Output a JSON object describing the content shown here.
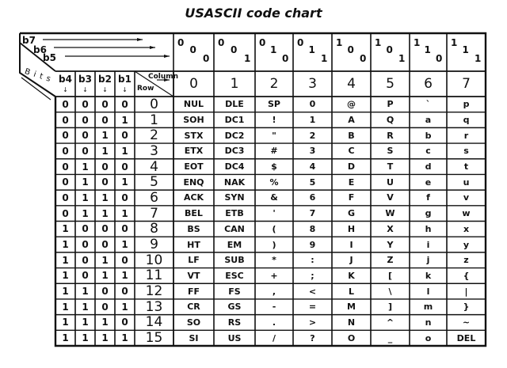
{
  "title": "USASCII code chart",
  "header": {
    "bits_label": "Bits",
    "b7": "b7",
    "b6": "b6",
    "b5": "b5",
    "bit_columns": [
      "b4",
      "b3",
      "b2",
      "b1"
    ],
    "column_label": "Column",
    "row_label": "Row"
  },
  "columns": [
    {
      "bits": [
        "0",
        "0",
        "0"
      ],
      "number": "0"
    },
    {
      "bits": [
        "0",
        "0",
        "1"
      ],
      "number": "1"
    },
    {
      "bits": [
        "0",
        "1",
        "0"
      ],
      "number": "2"
    },
    {
      "bits": [
        "0",
        "1",
        "1"
      ],
      "number": "3"
    },
    {
      "bits": [
        "1",
        "0",
        "0"
      ],
      "number": "4"
    },
    {
      "bits": [
        "1",
        "0",
        "1"
      ],
      "number": "5"
    },
    {
      "bits": [
        "1",
        "1",
        "0"
      ],
      "number": "6"
    },
    {
      "bits": [
        "1",
        "1",
        "1"
      ],
      "number": "7"
    }
  ],
  "rows": [
    {
      "bits": [
        "0",
        "0",
        "0",
        "0"
      ],
      "number": "0",
      "chars": [
        "NUL",
        "DLE",
        "SP",
        "0",
        "@",
        "P",
        "`",
        "p"
      ]
    },
    {
      "bits": [
        "0",
        "0",
        "0",
        "1"
      ],
      "number": "1",
      "chars": [
        "SOH",
        "DC1",
        "!",
        "1",
        "A",
        "Q",
        "a",
        "q"
      ]
    },
    {
      "bits": [
        "0",
        "0",
        "1",
        "0"
      ],
      "number": "2",
      "chars": [
        "STX",
        "DC2",
        "\"",
        "2",
        "B",
        "R",
        "b",
        "r"
      ]
    },
    {
      "bits": [
        "0",
        "0",
        "1",
        "1"
      ],
      "number": "3",
      "chars": [
        "ETX",
        "DC3",
        "#",
        "3",
        "C",
        "S",
        "c",
        "s"
      ]
    },
    {
      "bits": [
        "0",
        "1",
        "0",
        "0"
      ],
      "number": "4",
      "chars": [
        "EOT",
        "DC4",
        "$",
        "4",
        "D",
        "T",
        "d",
        "t"
      ]
    },
    {
      "bits": [
        "0",
        "1",
        "0",
        "1"
      ],
      "number": "5",
      "chars": [
        "ENQ",
        "NAK",
        "%",
        "5",
        "E",
        "U",
        "e",
        "u"
      ]
    },
    {
      "bits": [
        "0",
        "1",
        "1",
        "0"
      ],
      "number": "6",
      "chars": [
        "ACK",
        "SYN",
        "&",
        "6",
        "F",
        "V",
        "f",
        "v"
      ]
    },
    {
      "bits": [
        "0",
        "1",
        "1",
        "1"
      ],
      "number": "7",
      "chars": [
        "BEL",
        "ETB",
        "'",
        "7",
        "G",
        "W",
        "g",
        "w"
      ]
    },
    {
      "bits": [
        "1",
        "0",
        "0",
        "0"
      ],
      "number": "8",
      "chars": [
        "BS",
        "CAN",
        "(",
        "8",
        "H",
        "X",
        "h",
        "x"
      ]
    },
    {
      "bits": [
        "1",
        "0",
        "0",
        "1"
      ],
      "number": "9",
      "chars": [
        "HT",
        "EM",
        ")",
        "9",
        "I",
        "Y",
        "i",
        "y"
      ]
    },
    {
      "bits": [
        "1",
        "0",
        "1",
        "0"
      ],
      "number": "10",
      "chars": [
        "LF",
        "SUB",
        "*",
        ":",
        "J",
        "Z",
        "j",
        "z"
      ]
    },
    {
      "bits": [
        "1",
        "0",
        "1",
        "1"
      ],
      "number": "11",
      "chars": [
        "VT",
        "ESC",
        "+",
        ";",
        "K",
        "[",
        "k",
        "{"
      ]
    },
    {
      "bits": [
        "1",
        "1",
        "0",
        "0"
      ],
      "number": "12",
      "chars": [
        "FF",
        "FS",
        ",",
        "<",
        "L",
        "\\",
        "l",
        "|"
      ]
    },
    {
      "bits": [
        "1",
        "1",
        "0",
        "1"
      ],
      "number": "13",
      "chars": [
        "CR",
        "GS",
        "-",
        "=",
        "M",
        "]",
        "m",
        "}"
      ]
    },
    {
      "bits": [
        "1",
        "1",
        "1",
        "0"
      ],
      "number": "14",
      "chars": [
        "SO",
        "RS",
        ".",
        ">",
        "N",
        "^",
        "n",
        "~"
      ]
    },
    {
      "bits": [
        "1",
        "1",
        "1",
        "1"
      ],
      "number": "15",
      "chars": [
        "SI",
        "US",
        "/",
        "?",
        "O",
        "_",
        "o",
        "DEL"
      ]
    }
  ]
}
